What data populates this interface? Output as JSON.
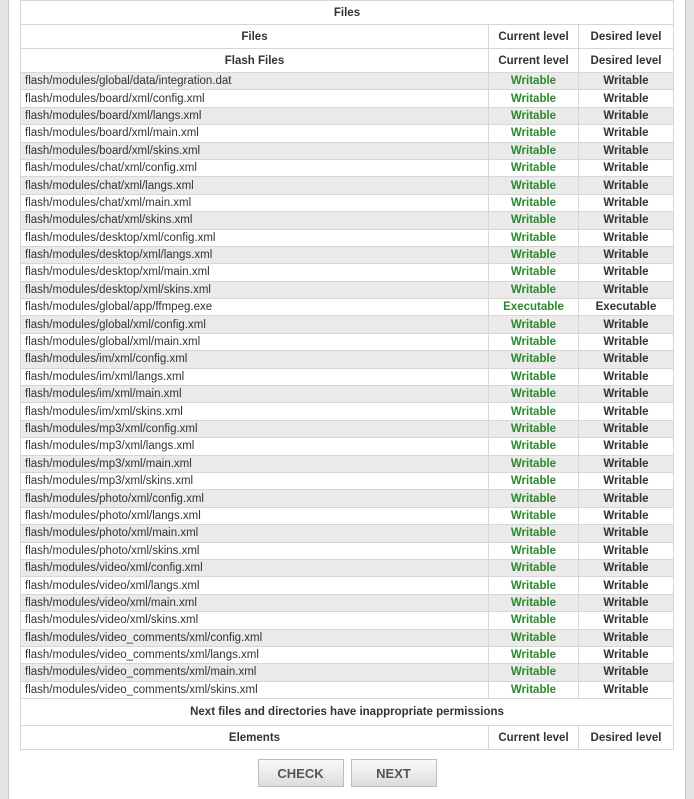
{
  "title": "Files",
  "header": {
    "files": "Files",
    "current": "Current level",
    "desired": "Desired level"
  },
  "section": {
    "name": "Flash Files",
    "current": "Current level",
    "desired": "Desired level"
  },
  "rows": [
    {
      "path": "flash/modules/global/data/integration.dat",
      "current": "Writable",
      "desired": "Writable"
    },
    {
      "path": "flash/modules/board/xml/config.xml",
      "current": "Writable",
      "desired": "Writable"
    },
    {
      "path": "flash/modules/board/xml/langs.xml",
      "current": "Writable",
      "desired": "Writable"
    },
    {
      "path": "flash/modules/board/xml/main.xml",
      "current": "Writable",
      "desired": "Writable"
    },
    {
      "path": "flash/modules/board/xml/skins.xml",
      "current": "Writable",
      "desired": "Writable"
    },
    {
      "path": "flash/modules/chat/xml/config.xml",
      "current": "Writable",
      "desired": "Writable"
    },
    {
      "path": "flash/modules/chat/xml/langs.xml",
      "current": "Writable",
      "desired": "Writable"
    },
    {
      "path": "flash/modules/chat/xml/main.xml",
      "current": "Writable",
      "desired": "Writable"
    },
    {
      "path": "flash/modules/chat/xml/skins.xml",
      "current": "Writable",
      "desired": "Writable"
    },
    {
      "path": "flash/modules/desktop/xml/config.xml",
      "current": "Writable",
      "desired": "Writable"
    },
    {
      "path": "flash/modules/desktop/xml/langs.xml",
      "current": "Writable",
      "desired": "Writable"
    },
    {
      "path": "flash/modules/desktop/xml/main.xml",
      "current": "Writable",
      "desired": "Writable"
    },
    {
      "path": "flash/modules/desktop/xml/skins.xml",
      "current": "Writable",
      "desired": "Writable"
    },
    {
      "path": "flash/modules/global/app/ffmpeg.exe",
      "current": "Executable",
      "desired": "Executable"
    },
    {
      "path": "flash/modules/global/xml/config.xml",
      "current": "Writable",
      "desired": "Writable"
    },
    {
      "path": "flash/modules/global/xml/main.xml",
      "current": "Writable",
      "desired": "Writable"
    },
    {
      "path": "flash/modules/im/xml/config.xml",
      "current": "Writable",
      "desired": "Writable"
    },
    {
      "path": "flash/modules/im/xml/langs.xml",
      "current": "Writable",
      "desired": "Writable"
    },
    {
      "path": "flash/modules/im/xml/main.xml",
      "current": "Writable",
      "desired": "Writable"
    },
    {
      "path": "flash/modules/im/xml/skins.xml",
      "current": "Writable",
      "desired": "Writable"
    },
    {
      "path": "flash/modules/mp3/xml/config.xml",
      "current": "Writable",
      "desired": "Writable"
    },
    {
      "path": "flash/modules/mp3/xml/langs.xml",
      "current": "Writable",
      "desired": "Writable"
    },
    {
      "path": "flash/modules/mp3/xml/main.xml",
      "current": "Writable",
      "desired": "Writable"
    },
    {
      "path": "flash/modules/mp3/xml/skins.xml",
      "current": "Writable",
      "desired": "Writable"
    },
    {
      "path": "flash/modules/photo/xml/config.xml",
      "current": "Writable",
      "desired": "Writable"
    },
    {
      "path": "flash/modules/photo/xml/langs.xml",
      "current": "Writable",
      "desired": "Writable"
    },
    {
      "path": "flash/modules/photo/xml/main.xml",
      "current": "Writable",
      "desired": "Writable"
    },
    {
      "path": "flash/modules/photo/xml/skins.xml",
      "current": "Writable",
      "desired": "Writable"
    },
    {
      "path": "flash/modules/video/xml/config.xml",
      "current": "Writable",
      "desired": "Writable"
    },
    {
      "path": "flash/modules/video/xml/langs.xml",
      "current": "Writable",
      "desired": "Writable"
    },
    {
      "path": "flash/modules/video/xml/main.xml",
      "current": "Writable",
      "desired": "Writable"
    },
    {
      "path": "flash/modules/video/xml/skins.xml",
      "current": "Writable",
      "desired": "Writable"
    },
    {
      "path": "flash/modules/video_comments/xml/config.xml",
      "current": "Writable",
      "desired": "Writable"
    },
    {
      "path": "flash/modules/video_comments/xml/langs.xml",
      "current": "Writable",
      "desired": "Writable"
    },
    {
      "path": "flash/modules/video_comments/xml/main.xml",
      "current": "Writable",
      "desired": "Writable"
    },
    {
      "path": "flash/modules/video_comments/xml/skins.xml",
      "current": "Writable",
      "desired": "Writable"
    }
  ],
  "inappropriate": {
    "message": "Next files and directories have inappropriate permissions",
    "elements": "Elements",
    "current": "Current level",
    "desired": "Desired level"
  },
  "buttons": {
    "check": "CHECK",
    "next": "NEXT"
  },
  "colors": {
    "ok": "#2a8a2a",
    "row_alt": "#ebe9e9"
  }
}
